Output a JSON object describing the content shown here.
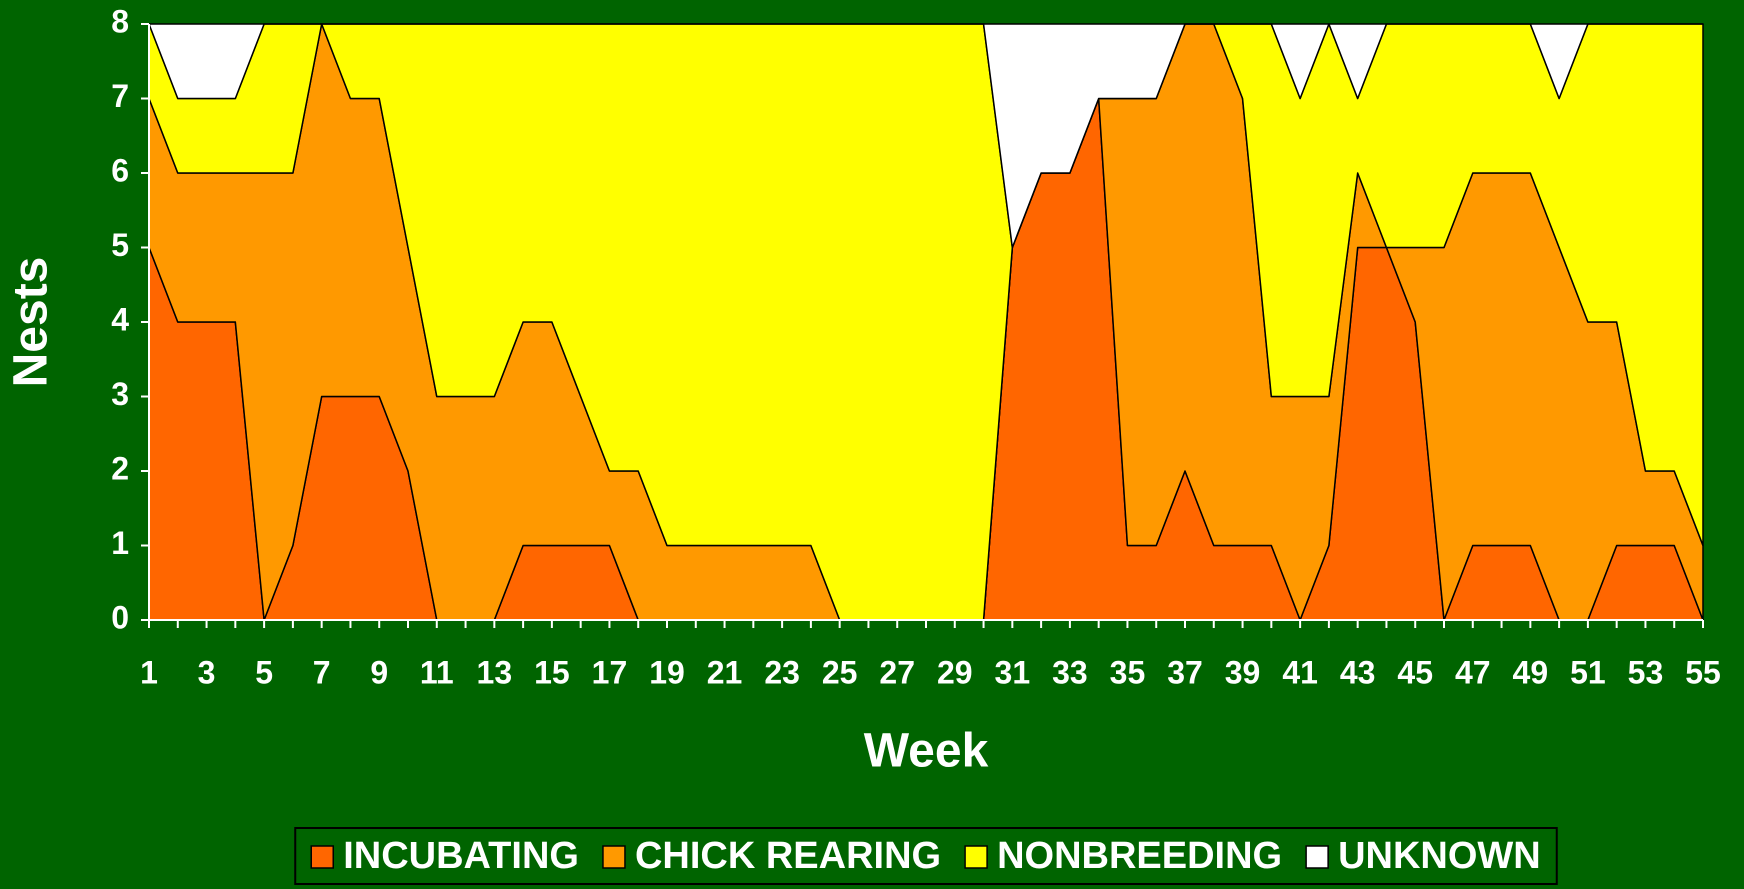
{
  "chart_data": {
    "type": "stacked_area",
    "xlabel": "Week",
    "ylabel": "Nests",
    "x": [
      1,
      2,
      3,
      4,
      5,
      6,
      7,
      8,
      9,
      10,
      11,
      12,
      13,
      14,
      15,
      16,
      17,
      18,
      19,
      20,
      21,
      22,
      23,
      24,
      25,
      26,
      27,
      28,
      29,
      30,
      31,
      32,
      33,
      34,
      35,
      36,
      37,
      38,
      39,
      40,
      41,
      42,
      43,
      44,
      45,
      46,
      47,
      48,
      49,
      50,
      51,
      52,
      53,
      54,
      55
    ],
    "xlim": [
      1,
      55
    ],
    "xticks": [
      1,
      3,
      5,
      7,
      9,
      11,
      13,
      15,
      17,
      19,
      21,
      23,
      25,
      27,
      29,
      31,
      33,
      35,
      37,
      39,
      41,
      43,
      45,
      47,
      49,
      51,
      53,
      55
    ],
    "ylim": [
      0,
      8
    ],
    "yticks": [
      0,
      1,
      2,
      3,
      4,
      5,
      6,
      7,
      8
    ],
    "legend": "bottom",
    "series": [
      {
        "name": "INCUBATING",
        "color": "#ff6600",
        "values": [
          5,
          4,
          4,
          4,
          0,
          1,
          3,
          3,
          3,
          2,
          0,
          0,
          0,
          1,
          1,
          1,
          1,
          0,
          0,
          0,
          0,
          0,
          0,
          0,
          0,
          0,
          0,
          0,
          0,
          0,
          5,
          6,
          6,
          7,
          1,
          1,
          2,
          1,
          1,
          1,
          0,
          1,
          5,
          5,
          4,
          0,
          1,
          1,
          1,
          0,
          0,
          1,
          1,
          1,
          0
        ]
      },
      {
        "name": "CHICK REARING",
        "color": "#ff9900",
        "values": [
          2,
          2,
          2,
          2,
          6,
          5,
          5,
          4,
          4,
          3,
          3,
          3,
          3,
          3,
          3,
          2,
          1,
          2,
          1,
          1,
          1,
          1,
          1,
          1,
          0,
          0,
          0,
          0,
          0,
          0,
          0,
          0,
          0,
          0,
          6,
          6,
          6,
          7,
          6,
          2,
          3,
          2,
          1,
          0,
          1,
          5,
          5,
          5,
          5,
          5,
          4,
          3,
          1,
          1,
          1
        ]
      },
      {
        "name": "NONBREEDING",
        "color": "#ffff00",
        "values": [
          1,
          1,
          1,
          1,
          2,
          2,
          0,
          1,
          1,
          3,
          5,
          5,
          5,
          4,
          4,
          5,
          6,
          6,
          7,
          7,
          7,
          7,
          7,
          7,
          8,
          8,
          8,
          8,
          8,
          8,
          0,
          0,
          0,
          0,
          0,
          0,
          0,
          0,
          1,
          5,
          4,
          5,
          1,
          3,
          3,
          3,
          2,
          2,
          2,
          2,
          4,
          4,
          6,
          6,
          7
        ]
      },
      {
        "name": "UNKNOWN",
        "color": "#ffffff",
        "values": [
          0,
          1,
          1,
          1,
          0,
          0,
          0,
          0,
          0,
          0,
          0,
          0,
          0,
          0,
          0,
          0,
          0,
          0,
          0,
          0,
          0,
          0,
          0,
          0,
          0,
          0,
          0,
          0,
          0,
          0,
          3,
          2,
          2,
          1,
          1,
          1,
          0,
          0,
          0,
          0,
          1,
          0,
          1,
          0,
          0,
          0,
          0,
          0,
          0,
          1,
          0,
          0,
          0,
          0,
          0
        ]
      }
    ]
  }
}
